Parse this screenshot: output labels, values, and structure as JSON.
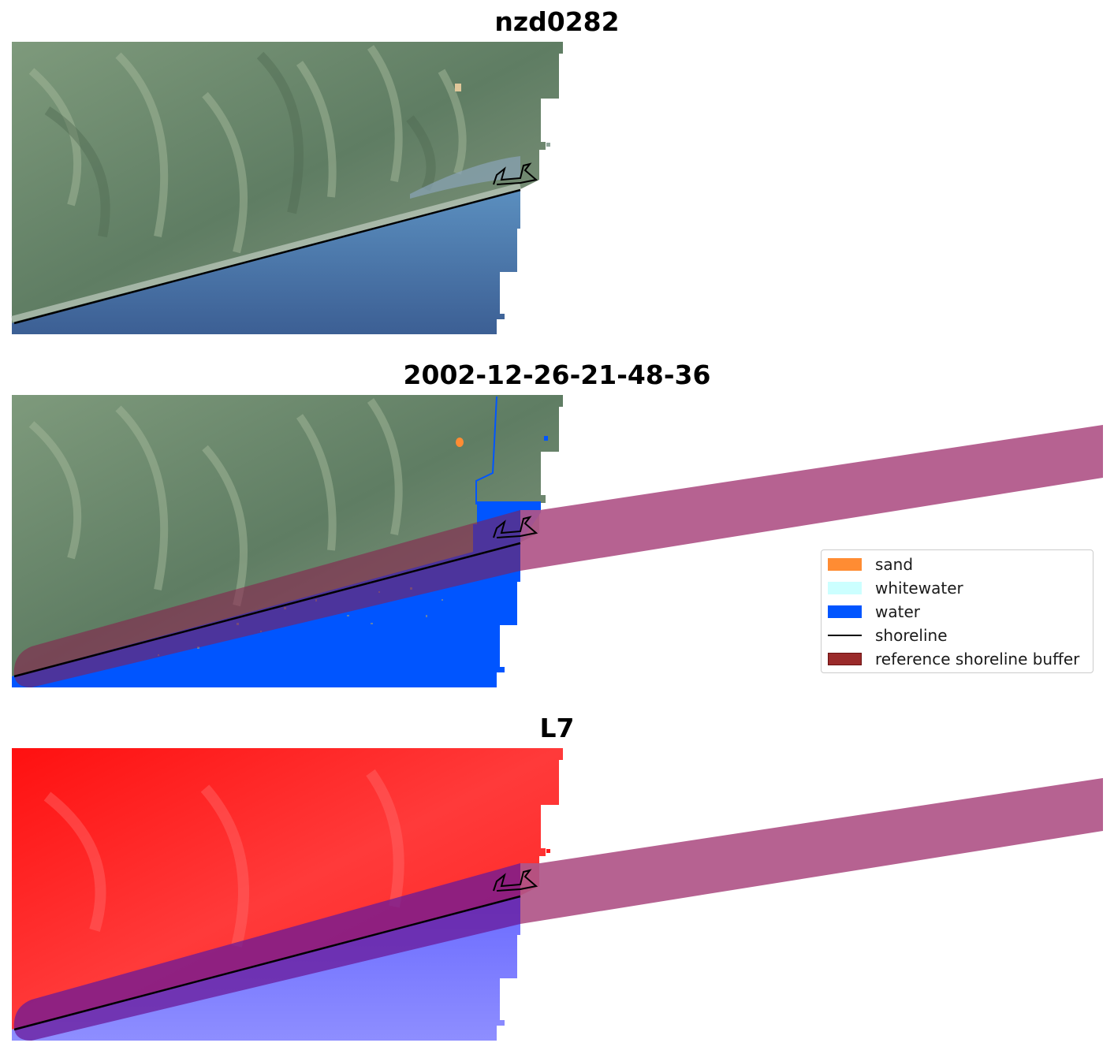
{
  "panels": [
    {
      "title": "nzd0282",
      "view": "rgb"
    },
    {
      "title": "2002-12-26-21-48-36",
      "view": "classified"
    },
    {
      "title": "L7",
      "view": "mndwi"
    }
  ],
  "legend": {
    "items": [
      {
        "label": "sand",
        "color": "#ff8c33",
        "kind": "patch"
      },
      {
        "label": "whitewater",
        "color": "#ccffff",
        "kind": "patch"
      },
      {
        "label": "water",
        "color": "#0055ff",
        "kind": "patch"
      },
      {
        "label": "shoreline",
        "color": "#000000",
        "kind": "line"
      },
      {
        "label": "reference shoreline buffer",
        "color": "#8b1a1a",
        "kind": "patch"
      }
    ]
  },
  "colors": {
    "land_rgb": "#6f8a6e",
    "water_rgb": "#4f78a8",
    "classified_water": "#0055ff",
    "buffer": "#b05588",
    "index_land": "#ff1a1a",
    "index_water": "#7a7aff",
    "shoreline": "#000000"
  }
}
